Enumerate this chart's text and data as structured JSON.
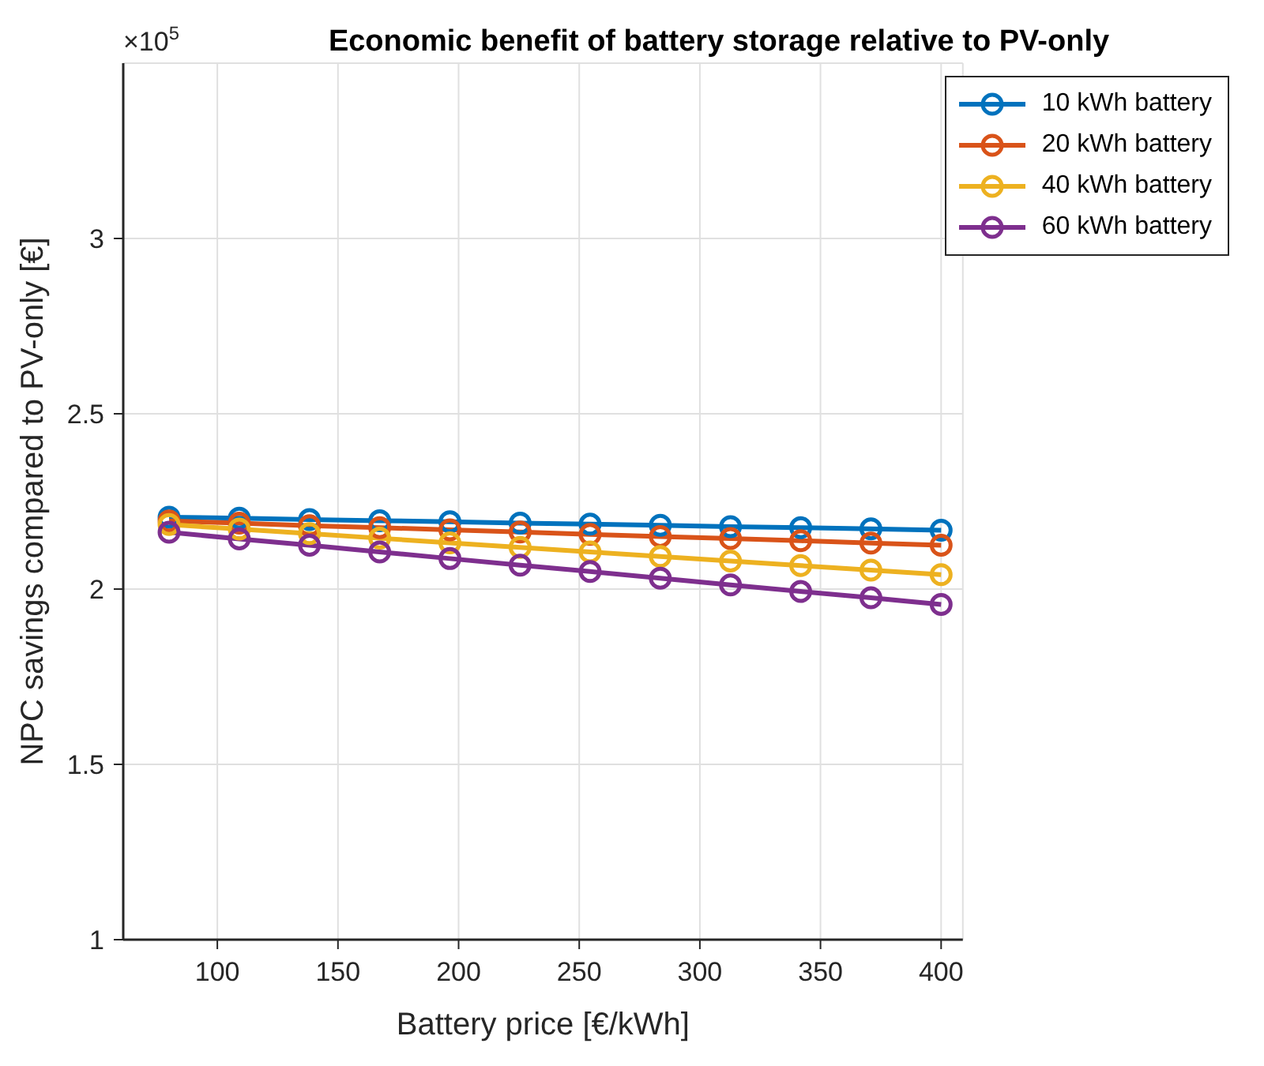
{
  "chart_data": {
    "type": "line",
    "title": "Economic benefit of battery storage relative to PV-only",
    "xlabel": "Battery price [€/kWh]",
    "ylabel": "NPC savings compared to PV-only [€]",
    "annotations": [
      "×10$^{5}$"
    ],
    "x": [
      80,
      109.1,
      138.2,
      167.3,
      196.4,
      225.5,
      254.5,
      283.6,
      312.7,
      341.8,
      370.9,
      400
    ],
    "series": [
      {
        "name": "10 kWh battery",
        "color": "#0072bd",
        "values": [
          2.205,
          2.202,
          2.198,
          2.195,
          2.192,
          2.188,
          2.185,
          2.182,
          2.178,
          2.175,
          2.172,
          2.168
        ]
      },
      {
        "name": "20 kWh battery",
        "color": "#d95319",
        "values": [
          2.194,
          2.188,
          2.181,
          2.175,
          2.169,
          2.163,
          2.156,
          2.15,
          2.144,
          2.138,
          2.131,
          2.125
        ]
      },
      {
        "name": "40 kWh battery",
        "color": "#edb120",
        "values": [
          2.184,
          2.171,
          2.158,
          2.145,
          2.132,
          2.119,
          2.106,
          2.093,
          2.08,
          2.067,
          2.054,
          2.041
        ]
      },
      {
        "name": "60 kWh battery",
        "color": "#7e2f8e",
        "values": [
          2.162,
          2.143,
          2.125,
          2.106,
          2.087,
          2.068,
          2.05,
          2.031,
          2.012,
          1.993,
          1.975,
          1.956
        ]
      }
    ],
    "xlim": [
      61,
      409
    ],
    "xticks": [
      100,
      150,
      200,
      250,
      300,
      350,
      400
    ],
    "ylim": [
      1,
      3.5
    ],
    "yticks": [
      1,
      1.5,
      2,
      2.5,
      3
    ],
    "grid": true,
    "legend": "top right",
    "marker": "circle",
    "line_style": "solid"
  }
}
